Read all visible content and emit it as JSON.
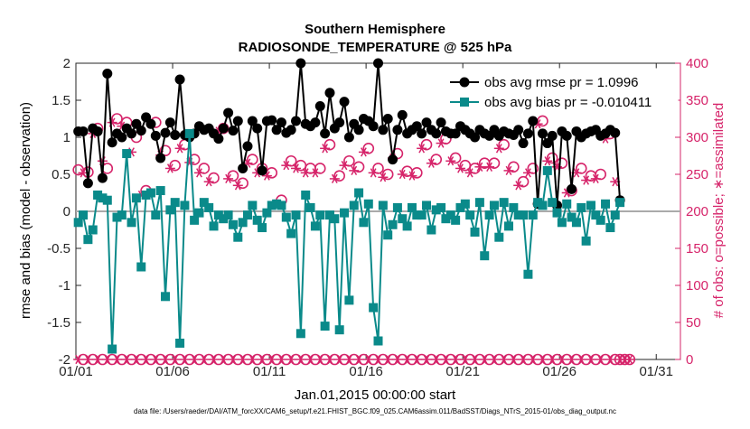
{
  "chart_data": {
    "type": "line",
    "title_line1": "Southern Hemisphere",
    "title_line2": "RADIOSONDE_TEMPERATURE @ 525 hPa",
    "xlabel": "Jan.01,2015 00:00:00 start",
    "ylabel_left": "rmse and bias (model - observation)",
    "ylabel_right": "# of obs: o=possible; ∗=assimilated",
    "footnote": "data file: /Users/raeder/DAI/ATM_forcXX/CAM6_setup/f.e21.FHIST_BGC.f09_025.CAM6assim.011/BadSST/Diags_NTrS_2015-01/obs_diag_output.nc",
    "x_ticks": [
      {
        "label": "01/01",
        "day": 0
      },
      {
        "label": "01/06",
        "day": 5
      },
      {
        "label": "01/11",
        "day": 10
      },
      {
        "label": "01/16",
        "day": 15
      },
      {
        "label": "01/21",
        "day": 20
      },
      {
        "label": "01/26",
        "day": 25
      },
      {
        "label": "01/31",
        "day": 30
      }
    ],
    "xlim": [
      0,
      31.25
    ],
    "ylim_left": [
      -2,
      2
    ],
    "ylim_right": [
      0,
      400
    ],
    "yticks_left": [
      -2,
      -1.5,
      -1,
      -0.5,
      0,
      0.5,
      1,
      1.5,
      2
    ],
    "yticks_right": [
      0,
      50,
      100,
      150,
      200,
      250,
      300,
      350,
      400
    ],
    "yticks_left_labels": [
      "-2",
      "-1.5",
      "-1",
      "-0.5",
      "0",
      "0.5",
      "1",
      "1.5",
      "2"
    ],
    "yticks_right_labels": [
      "0",
      "50",
      "100",
      "150",
      "200",
      "250",
      "300",
      "350",
      "400"
    ],
    "x_start": 0.125,
    "x_step": 0.25,
    "series": [
      {
        "name": "obs avg rmse",
        "legend": "obs avg rmse pr = 1.0996",
        "color": "#000000",
        "marker": "circle",
        "axis": "left",
        "values": [
          1.08,
          1.08,
          0.38,
          1.12,
          1.08,
          0.45,
          1.86,
          0.93,
          1.05,
          1.0,
          1.12,
          1.05,
          1.18,
          1.09,
          1.27,
          1.18,
          1.02,
          0.72,
          1.06,
          1.2,
          1.03,
          1.78,
          1.03,
          1.0,
          1.05,
          1.15,
          1.1,
          1.12,
          1.05,
          0.98,
          1.12,
          1.33,
          1.09,
          1.22,
          0.58,
          0.88,
          1.22,
          1.12,
          0.55,
          1.22,
          1.23,
          1.1,
          1.2,
          1.06,
          1.1,
          1.22,
          2.0,
          1.18,
          1.15,
          1.2,
          1.42,
          1.05,
          1.6,
          1.12,
          1.2,
          1.48,
          1.0,
          1.18,
          1.1,
          1.25,
          1.22,
          1.15,
          2.0,
          1.1,
          1.25,
          0.7,
          1.1,
          1.3,
          1.05,
          1.1,
          1.15,
          1.05,
          1.2,
          1.1,
          1.05,
          1.2,
          1.08,
          1.05,
          1.05,
          1.15,
          1.1,
          1.05,
          1.0,
          1.1,
          1.05,
          1.02,
          1.1,
          1.02,
          1.08,
          1.05,
          1.03,
          1.1,
          0.92,
          1.05,
          1.22,
          0.1,
          1.05,
          0.92,
          1.02,
          0.08,
          1.08,
          1.02,
          0.3,
          1.08,
          1.0,
          1.05,
          1.08,
          1.1,
          1.02,
          1.05,
          1.1,
          1.06,
          0.15
        ]
      },
      {
        "name": "obs avg bias",
        "legend": "obs avg bias pr = -0.010411",
        "color": "#0a8a8a",
        "marker": "square",
        "axis": "left",
        "values": [
          -0.15,
          -0.05,
          -0.38,
          -0.25,
          0.22,
          0.18,
          0.15,
          -1.86,
          -0.08,
          -0.05,
          0.78,
          -0.15,
          0.18,
          -0.75,
          0.22,
          0.25,
          -0.05,
          0.28,
          -1.15,
          0.02,
          0.12,
          -1.78,
          0.08,
          1.05,
          -0.12,
          -0.02,
          0.12,
          0.05,
          -0.2,
          -0.05,
          -0.1,
          -0.05,
          -0.18,
          -0.35,
          -0.15,
          -0.05,
          0.08,
          -0.12,
          -0.22,
          -0.02,
          0.08,
          0.1,
          0.08,
          -0.08,
          -0.3,
          -0.05,
          -1.65,
          0.22,
          0.05,
          -0.2,
          -0.05,
          -1.55,
          -0.05,
          -0.1,
          -1.6,
          -0.02,
          -1.2,
          0.08,
          0.25,
          -0.15,
          0.1,
          -1.3,
          -1.75,
          0.08,
          -0.32,
          -0.18,
          0.05,
          -0.1,
          -0.2,
          0.05,
          -0.05,
          -0.05,
          0.08,
          -0.25,
          0.02,
          0.05,
          -0.1,
          -0.05,
          -0.12,
          0.05,
          0.1,
          -0.05,
          -0.28,
          0.12,
          -0.6,
          -0.05,
          0.08,
          -0.35,
          0.12,
          -0.2,
          0.05,
          -0.05,
          -0.05,
          -0.85,
          -0.05,
          0.12,
          0.08,
          0.55,
          0.12,
          -0.02,
          -0.15,
          0.1,
          -0.08,
          -0.15,
          0.05,
          -0.4,
          0.08,
          -0.05,
          -0.12,
          0.1,
          -0.22,
          -0.05,
          0.12
        ]
      },
      {
        "name": "# of obs possible",
        "color": "#d6246a",
        "marker": "open-circle",
        "axis": "right",
        "values": [
          256,
          0,
          253,
          0,
          312,
          0,
          258,
          0,
          325,
          0,
          320,
          0,
          300,
          0,
          228,
          0,
          320,
          0,
          282,
          0,
          262,
          0,
          290,
          0,
          270,
          0,
          258,
          0,
          245,
          0,
          312,
          0,
          248,
          0,
          238,
          0,
          270,
          0,
          258,
          0,
          252,
          0,
          215,
          0,
          268,
          0,
          262,
          0,
          258,
          0,
          258,
          0,
          290,
          0,
          248,
          0,
          268,
          0,
          260,
          0,
          285,
          0,
          258,
          0,
          250,
          0,
          278,
          0,
          254,
          0,
          252,
          0,
          290,
          0,
          270,
          0,
          298,
          0,
          272,
          0,
          262,
          0,
          258,
          0,
          265,
          0,
          265,
          0,
          290,
          0,
          260,
          0,
          240,
          0,
          258,
          0,
          322,
          0,
          272,
          0,
          265,
          0,
          228,
          0,
          258,
          0,
          248,
          0,
          250,
          0,
          305,
          0,
          0,
          0,
          0
        ]
      },
      {
        "name": "# of obs assimilated",
        "color": "#d6246a",
        "marker": "asterisk",
        "axis": "right",
        "values": [
          0,
          252,
          0,
          305,
          0,
          268,
          0,
          320,
          0,
          315,
          0,
          280,
          0,
          222,
          0,
          318,
          0,
          276,
          0,
          258,
          0,
          285,
          0,
          266,
          0,
          252,
          0,
          240,
          0,
          308,
          0,
          244,
          0,
          235,
          0,
          265,
          0,
          252,
          0,
          248,
          0,
          210,
          0,
          262,
          0,
          258,
          0,
          252,
          0,
          252,
          0,
          285,
          0,
          244,
          0,
          262,
          0,
          255,
          0,
          280,
          0,
          252,
          0,
          246,
          0,
          272,
          0,
          250,
          0,
          248,
          0,
          285,
          0,
          265,
          0,
          292,
          0,
          268,
          0,
          258,
          0,
          252,
          0,
          260,
          0,
          260,
          0,
          285,
          0,
          255,
          0,
          235,
          0,
          252,
          0,
          318,
          0,
          268,
          0,
          260,
          0,
          225,
          0,
          252,
          0,
          242,
          0,
          244,
          0,
          298,
          0,
          240,
          0,
          0,
          0
        ]
      }
    ],
    "zero_line_color": "#aaaaaa"
  }
}
